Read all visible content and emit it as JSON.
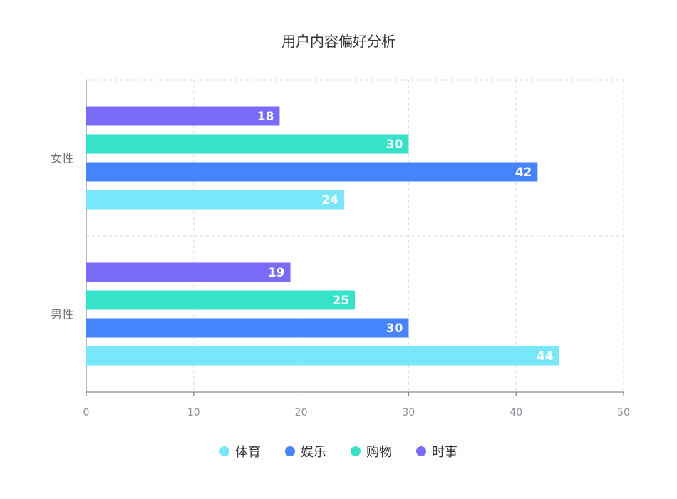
{
  "chart_data": {
    "type": "bar",
    "orientation": "horizontal",
    "title": "用户内容偏好分析",
    "categories": [
      "男性",
      "女性"
    ],
    "series": [
      {
        "name": "体育",
        "color": "#78e7f9",
        "values": [
          44,
          24
        ]
      },
      {
        "name": "娱乐",
        "color": "#4684fc",
        "values": [
          30,
          42
        ]
      },
      {
        "name": "购物",
        "color": "#36e2c8",
        "values": [
          25,
          30
        ]
      },
      {
        "name": "时事",
        "color": "#7a6af8",
        "values": [
          19,
          18
        ]
      }
    ],
    "xlim": [
      0,
      50
    ],
    "x_ticks": [
      0,
      10,
      20,
      30,
      40,
      50
    ],
    "grid": true,
    "legend_position": "bottom",
    "data_labels": true
  }
}
